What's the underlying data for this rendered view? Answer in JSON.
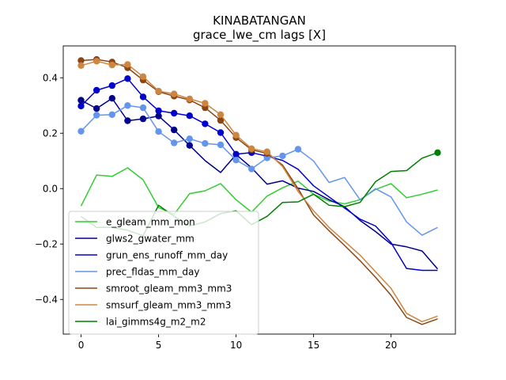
{
  "chart_data": {
    "type": "line",
    "title": "KINABATANGAN",
    "subtitle": "grace_lwe_cm lags [X]",
    "xlabel": "",
    "ylabel": "",
    "xlim": [
      -1.15,
      24.15
    ],
    "ylim": [
      -0.525,
      0.515
    ],
    "x_ticks": [
      0,
      5,
      10,
      15,
      20
    ],
    "y_ticks": [
      -0.4,
      -0.2,
      0.0,
      0.2,
      0.4
    ],
    "x_tick_labels": [
      "0",
      "5",
      "10",
      "15",
      "20"
    ],
    "y_tick_labels": [
      "−0.4",
      "−0.2",
      "0.0",
      "0.2",
      "0.4"
    ],
    "grid": false,
    "legend_position": "lower-left",
    "x": [
      0,
      1,
      2,
      3,
      4,
      5,
      6,
      7,
      8,
      9,
      10,
      11,
      12,
      13,
      14,
      15,
      16,
      17,
      18,
      19,
      20,
      21,
      22,
      23
    ],
    "series": [
      {
        "name": "e_gleam_mm_mon",
        "color": "#32cd32",
        "values": [
          -0.063,
          0.049,
          0.044,
          0.075,
          0.032,
          -0.068,
          -0.093,
          -0.018,
          -0.008,
          0.018,
          -0.04,
          -0.085,
          -0.027,
          0.003,
          0.027,
          -0.02,
          -0.045,
          -0.055,
          -0.04,
          -0.003,
          0.018,
          -0.033,
          -0.02,
          -0.005
        ],
        "markers": []
      },
      {
        "name": "glws2_gwater_mm",
        "color": "#00008b",
        "values": [
          0.319,
          0.289,
          0.326,
          0.245,
          0.252,
          0.262,
          0.212,
          0.156,
          0.101,
          0.058,
          0.123,
          0.075,
          0.016,
          0.028,
          0.002,
          -0.01,
          -0.04,
          -0.065,
          -0.115,
          -0.155,
          -0.2,
          -0.21,
          -0.225,
          -0.29
        ],
        "markers": [
          0,
          1,
          2,
          3,
          4,
          5,
          6,
          7
        ]
      },
      {
        "name": "grun_ens_runoff_mm_day",
        "color": "#0000cd",
        "values": [
          0.298,
          0.355,
          0.372,
          0.397,
          0.331,
          0.281,
          0.272,
          0.263,
          0.234,
          0.202,
          0.124,
          0.13,
          0.117,
          0.102,
          0.07,
          0.01,
          -0.03,
          -0.07,
          -0.11,
          -0.135,
          -0.195,
          -0.288,
          -0.295,
          -0.295
        ],
        "markers": [
          0,
          1,
          2,
          3,
          4,
          5,
          6,
          7,
          8,
          9,
          10,
          11,
          12
        ]
      },
      {
        "name": "prec_fldas_mm_day",
        "color": "#6495ed",
        "values": [
          0.207,
          0.265,
          0.267,
          0.3,
          0.292,
          0.206,
          0.165,
          0.18,
          0.163,
          0.158,
          0.103,
          0.071,
          0.111,
          0.118,
          0.142,
          0.1,
          0.022,
          0.04,
          -0.04,
          0.0,
          -0.03,
          -0.12,
          -0.168,
          -0.14
        ],
        "markers": [
          0,
          1,
          2,
          3,
          4,
          5,
          6,
          7,
          8,
          9,
          10,
          11,
          12,
          13,
          14
        ]
      },
      {
        "name": "smroot_gleam_mm3_mm3",
        "color": "#8b4513",
        "values": [
          0.462,
          0.466,
          0.457,
          0.436,
          0.392,
          0.35,
          0.334,
          0.32,
          0.292,
          0.246,
          0.184,
          0.14,
          0.127,
          0.085,
          0.0,
          -0.095,
          -0.152,
          -0.205,
          -0.26,
          -0.32,
          -0.385,
          -0.465,
          -0.49,
          -0.47
        ],
        "markers": [
          0,
          1,
          2,
          3,
          4,
          5,
          6,
          7,
          8,
          9,
          10,
          11,
          12
        ]
      },
      {
        "name": "smsurf_gleam_mm3_mm3",
        "color": "#cd853f",
        "values": [
          0.444,
          0.46,
          0.446,
          0.448,
          0.404,
          0.352,
          0.342,
          0.324,
          0.308,
          0.267,
          0.193,
          0.144,
          0.133,
          0.08,
          -0.01,
          -0.08,
          -0.14,
          -0.19,
          -0.24,
          -0.3,
          -0.36,
          -0.45,
          -0.48,
          -0.46
        ],
        "markers": [
          0,
          1,
          2,
          3,
          4,
          5,
          6,
          7,
          8,
          9,
          10,
          11,
          12
        ]
      },
      {
        "name": "lai_gimms4g_m2_m2",
        "color": "#008000",
        "values": [
          -0.1,
          -0.14,
          -0.14,
          -0.15,
          -0.17,
          -0.06,
          -0.1,
          -0.135,
          -0.12,
          -0.09,
          -0.08,
          -0.13,
          -0.1,
          -0.05,
          -0.048,
          -0.02,
          -0.06,
          -0.065,
          -0.05,
          0.025,
          0.062,
          0.065,
          0.11,
          0.13
        ],
        "markers": [
          23
        ]
      }
    ]
  }
}
